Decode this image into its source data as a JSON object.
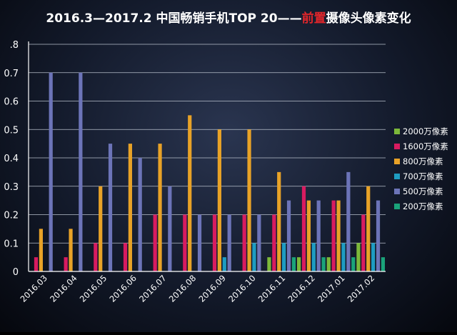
{
  "chart_data": {
    "type": "bar",
    "title_parts": [
      {
        "text": "2016.3—2017.2 中国畅销手机TOP 20——",
        "color": "#ffffff"
      },
      {
        "text": "前置",
        "color": "#e0262b"
      },
      {
        "text": "摄像头像素变化",
        "color": "#ffffff"
      }
    ],
    "categories": [
      "2016.03",
      "2016.04",
      "2016.05",
      "2016.06",
      "2016.07",
      "2016.08",
      "2016.09",
      "2016.10",
      "2016.11",
      "2016.12",
      "2017.01",
      "2017.02"
    ],
    "y_ticks": [
      {
        "value": 0,
        "label": "0"
      },
      {
        "value": 0.1,
        "label": "0.1"
      },
      {
        "value": 0.2,
        "label": "0.2"
      },
      {
        "value": 0.3,
        "label": "0.3"
      },
      {
        "value": 0.4,
        "label": "0.4"
      },
      {
        "value": 0.5,
        "label": "0.5"
      },
      {
        "value": 0.6,
        "label": "0.6"
      },
      {
        "value": 0.7,
        "label": "0.7"
      },
      {
        "value": 0.8,
        "label": ".8"
      }
    ],
    "ylim": [
      0,
      0.8
    ],
    "grid": true,
    "legend_position": "right",
    "series": [
      {
        "name": "2000万像素",
        "color": "#7cb83a",
        "values": [
          0,
          0,
          0,
          0,
          0,
          0,
          0,
          0,
          0.05,
          0.05,
          0.05,
          0.1
        ]
      },
      {
        "name": "1600万像素",
        "color": "#d81b60",
        "values": [
          0.05,
          0.05,
          0.1,
          0.1,
          0.2,
          0.2,
          0.2,
          0.2,
          0.2,
          0.3,
          0.25,
          0.2
        ]
      },
      {
        "name": "800万像素",
        "color": "#e8a227",
        "values": [
          0.15,
          0.15,
          0.3,
          0.45,
          0.45,
          0.55,
          0.5,
          0.5,
          0.35,
          0.25,
          0.25,
          0.3
        ]
      },
      {
        "name": "700万像素",
        "color": "#1e9cc1",
        "values": [
          0,
          0,
          0,
          0,
          0,
          0,
          0.05,
          0.1,
          0.1,
          0.1,
          0.1,
          0.1
        ]
      },
      {
        "name": "500万像素",
        "color": "#6c74b8",
        "values": [
          0.7,
          0.7,
          0.45,
          0.4,
          0.3,
          0.2,
          0.2,
          0.2,
          0.25,
          0.25,
          0.35,
          0.25
        ]
      },
      {
        "name": "200万像素",
        "color": "#1aa37a",
        "values": [
          0,
          0,
          0,
          0,
          0,
          0,
          0,
          0,
          0.05,
          0.05,
          0.05,
          0.05
        ]
      }
    ]
  }
}
